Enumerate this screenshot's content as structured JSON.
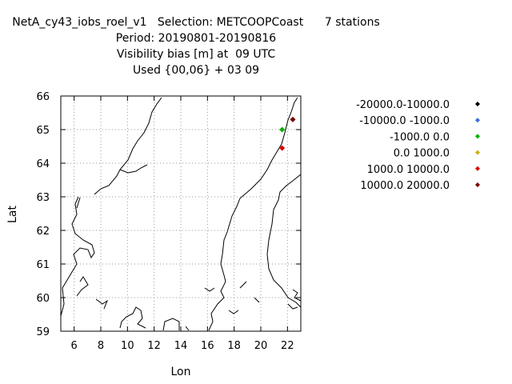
{
  "title": {
    "line1_left": "NetA_cy43_iobs_roel_v1",
    "line1_mid": "Selection: METCOOPCoast",
    "line1_right": "7 stations",
    "line2": "Period: 20190801-20190816",
    "line3": "Visibility bias [m] at  09 UTC",
    "line4": "Used {00,06} + 03 09"
  },
  "chart_data": {
    "type": "scatter",
    "xlabel": "Lon",
    "ylabel": "Lat",
    "xlim": [
      5,
      23
    ],
    "ylim": [
      59,
      66
    ],
    "xticks": [
      6,
      8,
      10,
      12,
      14,
      16,
      18,
      20,
      22
    ],
    "yticks": [
      59,
      60,
      61,
      62,
      63,
      64,
      65,
      66
    ],
    "grid": true,
    "legend_position": "right",
    "legend": [
      {
        "label": "-20000.0-10000.0",
        "color": "#000000"
      },
      {
        "label": "-10000.0 -1000.0",
        "color": "#3a6fd8"
      },
      {
        "label": "-1000.0 0.0",
        "color": "#00b000"
      },
      {
        "label": "0.0 1000.0",
        "color": "#c8b400"
      },
      {
        "label": "1000.0 10000.0",
        "color": "#e00000"
      },
      {
        "label": "10000.0 20000.0",
        "color": "#7a0000"
      }
    ],
    "points": [
      {
        "lon": 21.6,
        "lat": 65.0,
        "color": "#00b000"
      },
      {
        "lon": 21.6,
        "lat": 64.45,
        "color": "#e00000"
      },
      {
        "lon": 22.4,
        "lat": 65.3,
        "color": "#7a0000"
      }
    ]
  }
}
